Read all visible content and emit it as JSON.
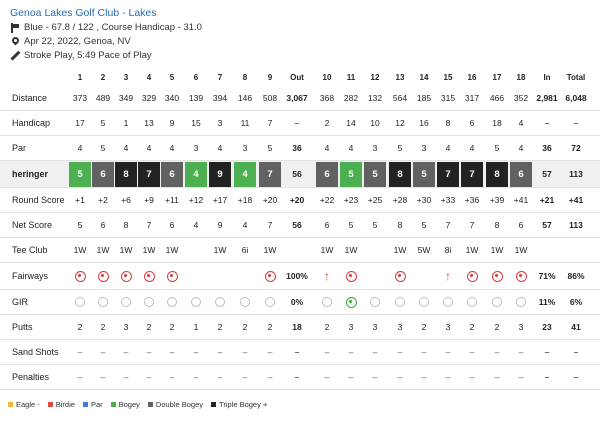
{
  "header": {
    "title": "Genoa Lakes Golf Club - Lakes",
    "tee_info": "Blue - 67.8 / 122 , Course Handicap - 31.0",
    "date_location": "Apr 22, 2022, Genoa, NV",
    "play_info": "Stroke Play, 5:49 Pace of Play"
  },
  "columns": [
    "1",
    "2",
    "3",
    "4",
    "5",
    "6",
    "7",
    "8",
    "9",
    "Out",
    "10",
    "11",
    "12",
    "13",
    "14",
    "15",
    "16",
    "17",
    "18",
    "In",
    "Total"
  ],
  "rows": [
    {
      "label": "Distance",
      "values": [
        "373",
        "489",
        "349",
        "329",
        "340",
        "139",
        "394",
        "146",
        "508",
        "3,067",
        "368",
        "282",
        "132",
        "564",
        "185",
        "315",
        "317",
        "466",
        "352",
        "2,981",
        "6,048"
      ]
    },
    {
      "label": "Handicap",
      "values": [
        "17",
        "5",
        "1",
        "13",
        "9",
        "15",
        "3",
        "11",
        "7",
        "–",
        "2",
        "14",
        "10",
        "12",
        "16",
        "8",
        "6",
        "18",
        "4",
        "–",
        "–"
      ]
    },
    {
      "label": "Par",
      "values": [
        "4",
        "5",
        "4",
        "4",
        "4",
        "3",
        "4",
        "3",
        "5",
        "36",
        "4",
        "4",
        "3",
        "5",
        "3",
        "4",
        "4",
        "5",
        "4",
        "36",
        "72"
      ]
    },
    {
      "label": "heringer",
      "values": [
        "5",
        "6",
        "8",
        "7",
        "6",
        "4",
        "9",
        "4",
        "7",
        "56",
        "6",
        "5",
        "5",
        "8",
        "5",
        "7",
        "7",
        "8",
        "6",
        "57",
        "113"
      ]
    },
    {
      "label": "Round Score",
      "values": [
        "+1",
        "+2",
        "+6",
        "+9",
        "+11",
        "+12",
        "+17",
        "+18",
        "+20",
        "+20",
        "+22",
        "+23",
        "+25",
        "+28",
        "+30",
        "+33",
        "+36",
        "+39",
        "+41",
        "+21",
        "+41"
      ]
    },
    {
      "label": "Net Score",
      "values": [
        "5",
        "6",
        "8",
        "7",
        "6",
        "4",
        "9",
        "4",
        "7",
        "56",
        "6",
        "5",
        "5",
        "8",
        "5",
        "7",
        "7",
        "8",
        "6",
        "57",
        "113"
      ]
    },
    {
      "label": "Tee Club",
      "values": [
        "1W",
        "1W",
        "1W",
        "1W",
        "1W",
        "",
        "1W",
        "6i",
        "1W",
        "",
        "1W",
        "1W",
        "",
        "1W",
        "5W",
        "8i",
        "1W",
        "1W",
        "1W",
        "",
        ""
      ]
    },
    {
      "label": "Fairways",
      "values": [
        "hit",
        "hit",
        "hit",
        "hit",
        "hit",
        "",
        "",
        "",
        "hit",
        "100%",
        "right",
        "hit",
        "",
        "hit",
        "",
        "right",
        "hit",
        "hit",
        "hit",
        "71%",
        "86%"
      ]
    },
    {
      "label": "GIR",
      "values": [
        "miss",
        "miss",
        "miss",
        "miss",
        "miss",
        "miss",
        "miss",
        "miss",
        "miss",
        "0%",
        "miss",
        "hit",
        "miss",
        "miss",
        "miss",
        "miss",
        "miss",
        "miss",
        "miss",
        "11%",
        "6%"
      ]
    },
    {
      "label": "Putts",
      "values": [
        "2",
        "2",
        "3",
        "2",
        "2",
        "1",
        "2",
        "2",
        "2",
        "18",
        "2",
        "3",
        "3",
        "3",
        "2",
        "3",
        "2",
        "2",
        "3",
        "23",
        "41"
      ]
    },
    {
      "label": "Sand Shots",
      "values": [
        "–",
        "–",
        "–",
        "–",
        "–",
        "–",
        "–",
        "–",
        "–",
        "–",
        "–",
        "–",
        "–",
        "–",
        "–",
        "–",
        "–",
        "–",
        "–",
        "–",
        "–"
      ]
    },
    {
      "label": "Penalties",
      "values": [
        "–",
        "–",
        "–",
        "–",
        "–",
        "–",
        "–",
        "–",
        "–",
        "–",
        "–",
        "–",
        "–",
        "–",
        "–",
        "–",
        "–",
        "–",
        "–",
        "–",
        "–"
      ]
    }
  ],
  "score_types": [
    "bogey",
    "double",
    "triple",
    "triple",
    "double",
    "bogey",
    "triple",
    "bogey",
    "double",
    "",
    "double",
    "bogey",
    "double",
    "triple",
    "double",
    "triple",
    "triple",
    "triple",
    "double",
    "",
    ""
  ],
  "colors": {
    "eagle": "#f2b632",
    "birdie": "#e04a4a",
    "par": "#3a7ed6",
    "bogey": "#4caf50",
    "double": "#616161",
    "triple": "#222222"
  },
  "legend": [
    {
      "key": "eagle",
      "label": "Eagle -"
    },
    {
      "key": "birdie",
      "label": "Birdie"
    },
    {
      "key": "par",
      "label": "Par"
    },
    {
      "key": "bogey",
      "label": "Bogey"
    },
    {
      "key": "double",
      "label": "Double Bogey"
    },
    {
      "key": "triple",
      "label": "Triple Bogey +"
    }
  ]
}
